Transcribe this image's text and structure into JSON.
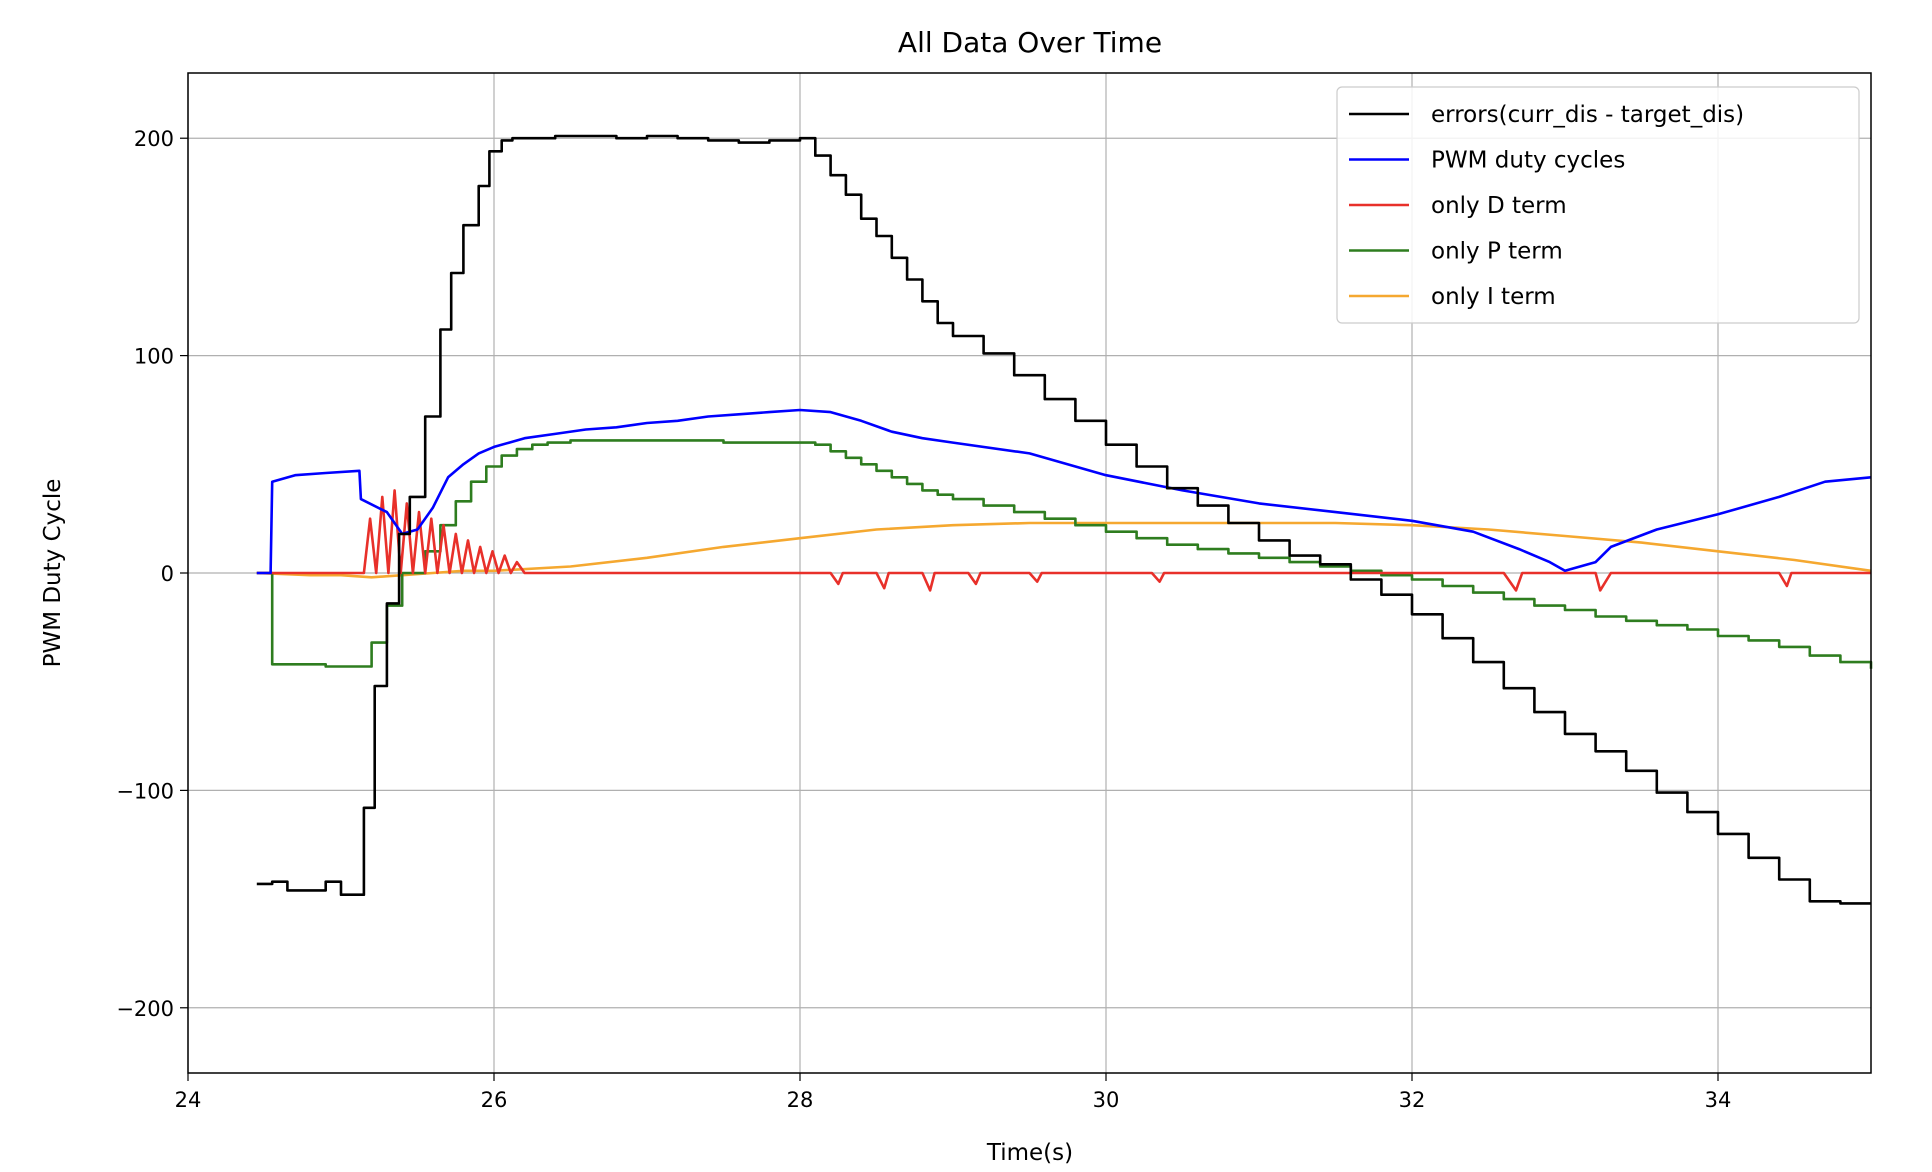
{
  "chart_data": {
    "type": "line",
    "title": "All Data Over Time",
    "xlabel": "Time(s)",
    "ylabel": "PWM Duty Cycle",
    "xlim": [
      24,
      35
    ],
    "ylim": [
      -230,
      230
    ],
    "xticks": [
      24,
      26,
      28,
      30,
      32,
      34
    ],
    "yticks": [
      -200,
      -100,
      0,
      100,
      200
    ],
    "xtick_labels": [
      "24",
      "26",
      "28",
      "30",
      "32",
      "34"
    ],
    "ytick_labels": [
      "−200",
      "−100",
      "0",
      "100",
      "200"
    ],
    "grid": true,
    "legend_position": "top-right",
    "series": [
      {
        "name": "errors(curr_dis - target_dis)",
        "color": "#000000",
        "step": true,
        "x": [
          24.45,
          24.55,
          24.65,
          24.8,
          24.9,
          25.0,
          25.15,
          25.22,
          25.3,
          25.38,
          25.45,
          25.55,
          25.65,
          25.72,
          25.8,
          25.9,
          25.97,
          26.05,
          26.12,
          26.2,
          26.28,
          26.4,
          26.6,
          26.8,
          27.0,
          27.2,
          27.4,
          27.6,
          27.8,
          28.0,
          28.1,
          28.2,
          28.3,
          28.4,
          28.5,
          28.6,
          28.7,
          28.8,
          28.9,
          29.0,
          29.2,
          29.4,
          29.6,
          29.8,
          30.0,
          30.2,
          30.4,
          30.6,
          30.8,
          31.0,
          31.2,
          31.4,
          31.6,
          31.8,
          32.0,
          32.2,
          32.4,
          32.6,
          32.8,
          33.0,
          33.2,
          33.4,
          33.6,
          33.8,
          34.0,
          34.2,
          34.4,
          34.6,
          34.8,
          35.0
        ],
        "y": [
          -143,
          -142,
          -146,
          -146,
          -142,
          -148,
          -108,
          -52,
          -14,
          18,
          35,
          72,
          112,
          138,
          160,
          178,
          194,
          199,
          200,
          200,
          200,
          201,
          201,
          200,
          201,
          200,
          199,
          198,
          199,
          200,
          192,
          183,
          174,
          163,
          155,
          145,
          135,
          125,
          115,
          109,
          101,
          91,
          80,
          70,
          59,
          49,
          39,
          31,
          23,
          15,
          8,
          4,
          -3,
          -10,
          -19,
          -30,
          -41,
          -53,
          -64,
          -74,
          -82,
          -91,
          -101,
          -110,
          -120,
          -131,
          -141,
          -151,
          -152,
          -152
        ]
      },
      {
        "name": "PWM duty cycles",
        "color": "#0000ff",
        "step": false,
        "x": [
          24.45,
          24.54,
          24.55,
          24.7,
          24.9,
          25.12,
          25.13,
          25.3,
          25.4,
          25.5,
          25.6,
          25.7,
          25.8,
          25.9,
          26.0,
          26.1,
          26.2,
          26.4,
          26.6,
          26.8,
          27.0,
          27.2,
          27.4,
          27.6,
          27.8,
          28.0,
          28.2,
          28.4,
          28.6,
          28.8,
          29.0,
          29.5,
          30.0,
          30.5,
          31.0,
          31.5,
          32.0,
          32.4,
          32.7,
          32.9,
          33.0,
          33.2,
          33.3,
          33.6,
          34.0,
          34.4,
          34.7,
          35.0
        ],
        "y": [
          0,
          0,
          42,
          45,
          46,
          47,
          34,
          28,
          18,
          20,
          30,
          44,
          50,
          55,
          58,
          60,
          62,
          64,
          66,
          67,
          69,
          70,
          72,
          73,
          74,
          75,
          74,
          70,
          65,
          62,
          60,
          55,
          45,
          38,
          32,
          28,
          24,
          19,
          11,
          5,
          1,
          5,
          12,
          20,
          27,
          35,
          42,
          44
        ]
      },
      {
        "name": "only D term",
        "color": "#e8302a",
        "step": false,
        "x": [
          24.45,
          25.0,
          25.15,
          25.19,
          25.23,
          25.27,
          25.31,
          25.35,
          25.39,
          25.43,
          25.47,
          25.51,
          25.55,
          25.59,
          25.63,
          25.67,
          25.71,
          25.75,
          25.79,
          25.83,
          25.87,
          25.91,
          25.95,
          25.99,
          26.03,
          26.07,
          26.11,
          26.15,
          26.2,
          26.5,
          27.0,
          27.5,
          28.0,
          28.2,
          28.25,
          28.28,
          28.5,
          28.55,
          28.58,
          28.8,
          28.85,
          28.88,
          29.1,
          29.15,
          29.18,
          29.5,
          29.55,
          29.58,
          30.3,
          30.35,
          30.38,
          31.0,
          31.5,
          32.0,
          32.6,
          32.68,
          32.72,
          33.0,
          33.2,
          33.23,
          33.3,
          34.4,
          34.45,
          34.48,
          35.0
        ],
        "y": [
          0,
          0,
          0,
          25,
          0,
          35,
          0,
          38,
          0,
          32,
          0,
          28,
          0,
          25,
          0,
          22,
          0,
          18,
          0,
          15,
          0,
          12,
          0,
          10,
          0,
          8,
          0,
          5,
          0,
          0,
          0,
          0,
          0,
          0,
          -5,
          0,
          0,
          -7,
          0,
          0,
          -8,
          0,
          0,
          -5,
          0,
          0,
          -4,
          0,
          0,
          -4,
          0,
          0,
          0,
          0,
          0,
          -8,
          0,
          0,
          0,
          -8,
          0,
          0,
          -6,
          0,
          0
        ]
      },
      {
        "name": "only P term",
        "color": "#2e7d1f",
        "step": true,
        "x": [
          24.45,
          24.54,
          24.55,
          24.7,
          24.9,
          25.12,
          25.2,
          25.3,
          25.4,
          25.55,
          25.65,
          25.75,
          25.85,
          25.95,
          26.05,
          26.15,
          26.25,
          26.35,
          26.5,
          27.0,
          27.5,
          28.0,
          28.1,
          28.2,
          28.3,
          28.4,
          28.5,
          28.6,
          28.7,
          28.8,
          28.9,
          29.0,
          29.2,
          29.4,
          29.6,
          29.8,
          30.0,
          30.2,
          30.4,
          30.6,
          30.8,
          31.0,
          31.2,
          31.4,
          31.6,
          31.8,
          32.0,
          32.2,
          32.4,
          32.6,
          32.8,
          33.0,
          33.2,
          33.4,
          33.6,
          33.8,
          34.0,
          34.2,
          34.4,
          34.6,
          34.8,
          35.0
        ],
        "y": [
          0,
          0,
          -42,
          -42,
          -43,
          -43,
          -32,
          -15,
          0,
          10,
          22,
          33,
          42,
          49,
          54,
          57,
          59,
          60,
          61,
          61,
          60,
          60,
          59,
          56,
          53,
          50,
          47,
          44,
          41,
          38,
          36,
          34,
          31,
          28,
          25,
          22,
          19,
          16,
          13,
          11,
          9,
          7,
          5,
          3,
          1,
          -1,
          -3,
          -6,
          -9,
          -12,
          -15,
          -17,
          -20,
          -22,
          -24,
          -26,
          -29,
          -31,
          -34,
          -38,
          -41,
          -44
        ]
      },
      {
        "name": "only I term",
        "color": "#f5a830",
        "step": false,
        "x": [
          24.45,
          24.8,
          25.0,
          25.2,
          25.4,
          25.6,
          25.8,
          26.0,
          26.5,
          27.0,
          27.5,
          28.0,
          28.5,
          29.0,
          29.5,
          30.0,
          30.5,
          31.0,
          31.5,
          32.0,
          32.5,
          33.0,
          33.5,
          34.0,
          34.5,
          35.0
        ],
        "y": [
          0,
          -1,
          -1,
          -2,
          -1,
          0,
          1,
          1,
          3,
          7,
          12,
          16,
          20,
          22,
          23,
          23,
          23,
          23,
          23,
          22,
          20,
          17,
          14,
          10,
          6,
          1
        ]
      }
    ]
  }
}
